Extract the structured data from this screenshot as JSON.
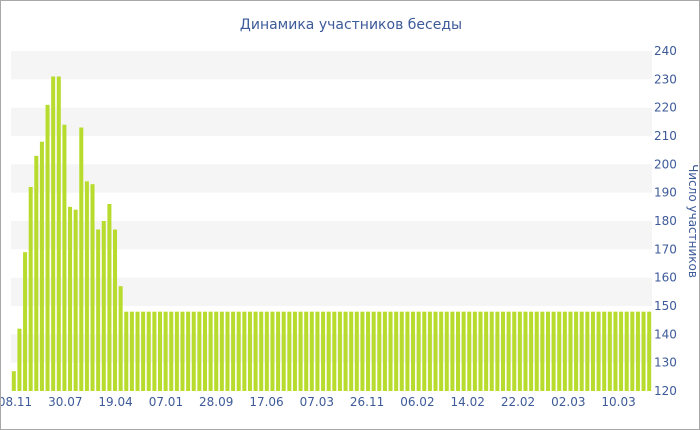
{
  "chart_data": {
    "type": "bar",
    "title": "Динамика участников беседы",
    "xlabel": "",
    "ylabel": "Число участников",
    "ylim": [
      120,
      240
    ],
    "yticks": [
      120,
      130,
      140,
      150,
      160,
      170,
      180,
      190,
      200,
      210,
      220,
      230,
      240
    ],
    "y_axis_side": "right",
    "grid": "alternating horizontal bands",
    "bar_color": "#b8dc2e",
    "band_color": "#f5f5f5",
    "text_color": "#3d5a99",
    "x_tick_labels": [
      "08.11",
      "30.07",
      "19.04",
      "07.01",
      "28.09",
      "17.06",
      "07.03",
      "26.11",
      "06.02",
      "14.02",
      "22.02",
      "02.03",
      "10.03"
    ],
    "values": [
      127,
      142,
      169,
      192,
      203,
      208,
      221,
      231,
      231,
      214,
      185,
      184,
      213,
      194,
      193,
      177,
      180,
      186,
      177,
      157,
      148,
      148,
      148,
      148,
      148,
      148,
      148,
      148,
      148,
      148,
      148,
      148,
      148,
      148,
      148,
      148,
      148,
      148,
      148,
      148,
      148,
      148,
      148,
      148,
      148,
      148,
      148,
      148,
      148,
      148,
      148,
      148,
      148,
      148,
      148,
      148,
      148,
      148,
      148,
      148,
      148,
      148,
      148,
      148,
      148,
      148,
      148,
      148,
      148,
      148,
      148,
      148,
      148,
      148,
      148,
      148,
      148,
      148,
      148,
      148,
      148,
      148,
      148,
      148,
      148,
      148,
      148,
      148,
      148,
      148,
      148,
      148,
      148,
      148,
      148,
      148,
      148,
      148,
      148,
      148,
      148,
      148,
      148,
      148,
      148,
      148,
      148,
      148,
      148,
      148,
      148,
      148,
      148,
      148
    ]
  }
}
